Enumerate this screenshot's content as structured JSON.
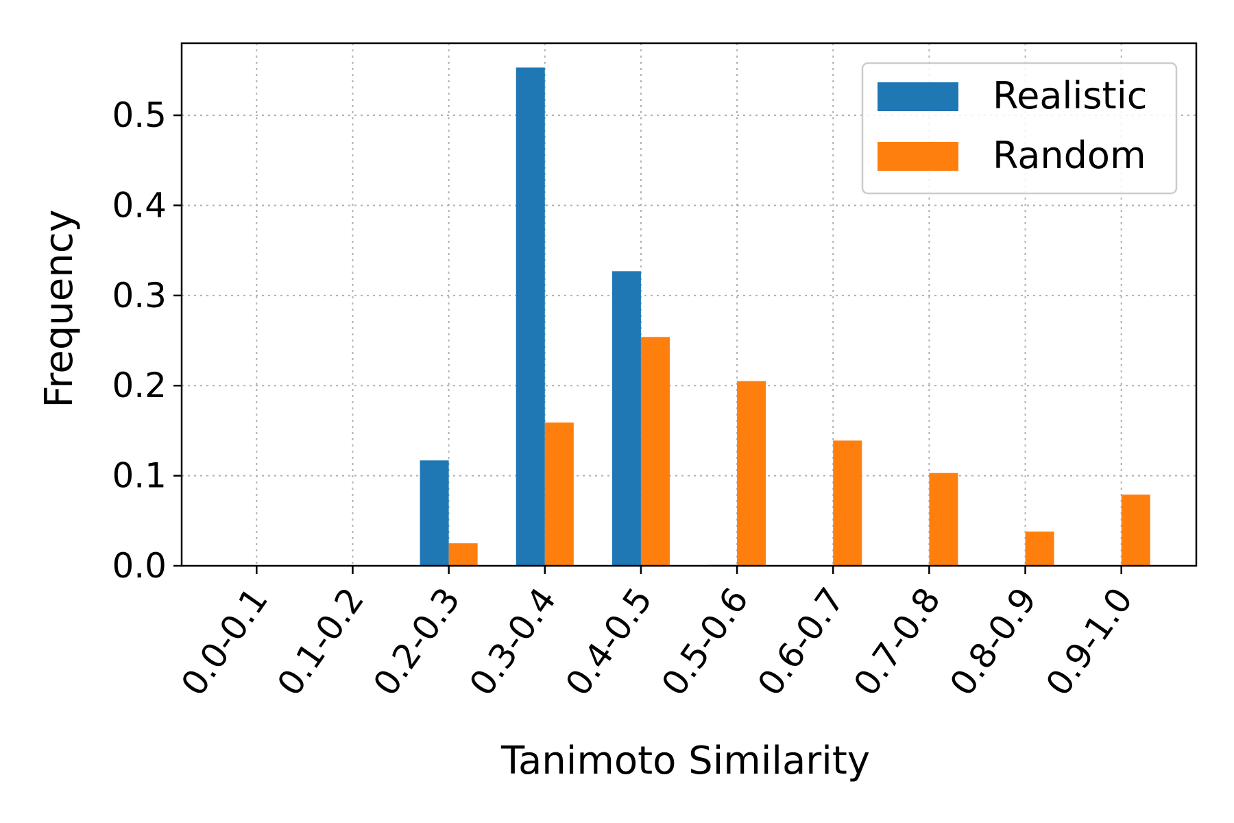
{
  "chart_data": {
    "type": "bar",
    "categories": [
      "0.0-0.1",
      "0.1-0.2",
      "0.2-0.3",
      "0.3-0.4",
      "0.4-0.5",
      "0.5-0.6",
      "0.6-0.7",
      "0.7-0.8",
      "0.8-0.9",
      "0.9-1.0"
    ],
    "series": [
      {
        "name": "Realistic",
        "color": "#1f77b4",
        "values": [
          0.0,
          0.0,
          0.117,
          0.553,
          0.327,
          0.001,
          0.0,
          0.0,
          0.0,
          0.0
        ]
      },
      {
        "name": "Random",
        "color": "#ff7f0e",
        "values": [
          0.0,
          0.0,
          0.025,
          0.159,
          0.254,
          0.205,
          0.139,
          0.103,
          0.038,
          0.079
        ]
      }
    ],
    "xlabel": "Tanimoto Similarity",
    "ylabel": "Frequency",
    "ylim": [
      0,
      0.58
    ],
    "yticks": [
      "0.0",
      "0.1",
      "0.2",
      "0.3",
      "0.4",
      "0.5"
    ],
    "grid": true,
    "legend_position": "top-right"
  }
}
